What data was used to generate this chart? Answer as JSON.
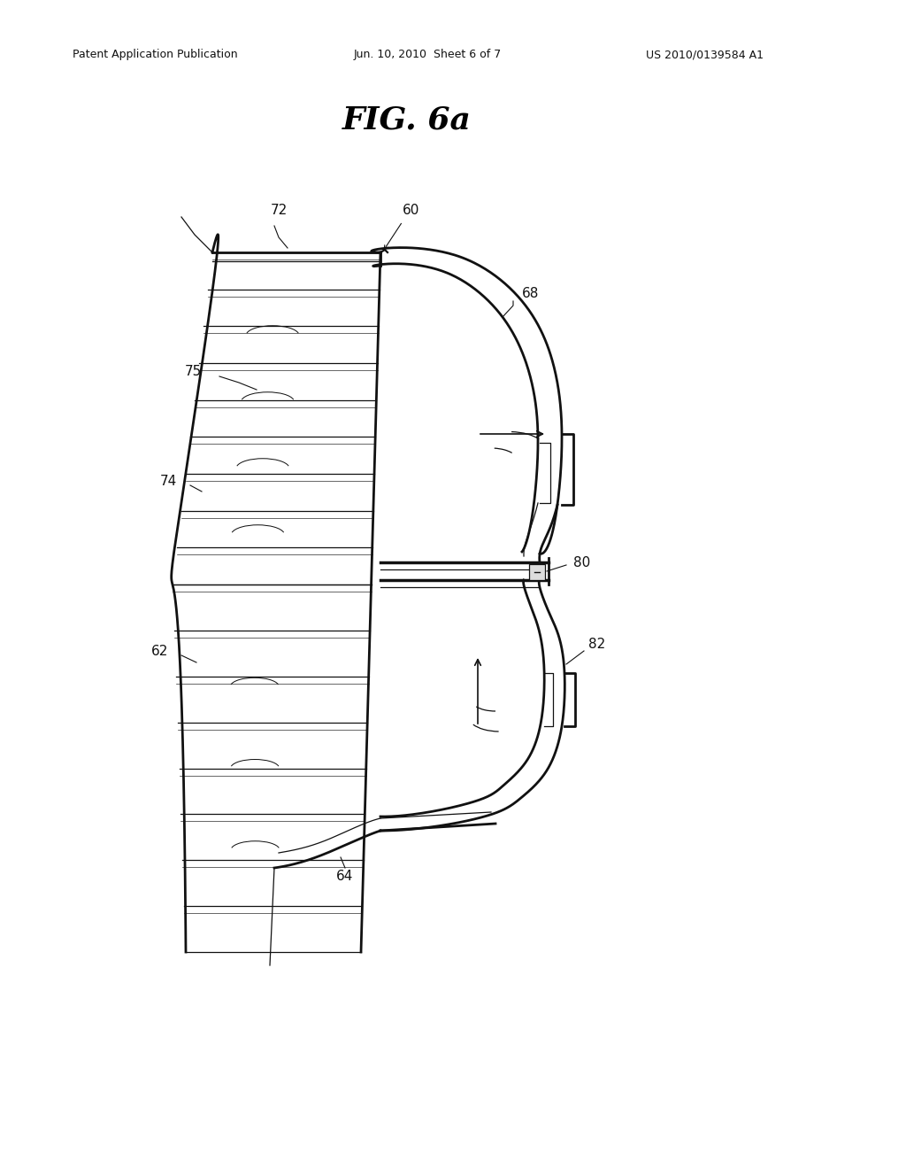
{
  "bg_color": "#ffffff",
  "line_color": "#111111",
  "header_left": "Patent Application Publication",
  "header_center": "Jun. 10, 2010  Sheet 6 of 7",
  "header_right": "US 2010/0139584 A1",
  "fig_label": "FIG. 6a",
  "lw_main": 2.0,
  "lw_thin": 0.9,
  "label_fontsize": 11,
  "header_fontsize": 9,
  "title_fontsize": 26,
  "n_ribs": 18
}
